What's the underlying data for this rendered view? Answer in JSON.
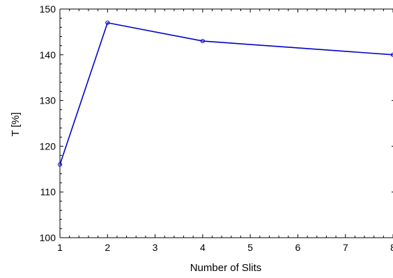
{
  "chart_data": {
    "type": "line",
    "title": "",
    "xlabel": "Number of Slits",
    "ylabel": "T [%]",
    "xlim": [
      1,
      8
    ],
    "ylim": [
      100,
      150
    ],
    "x_ticks": [
      "1",
      "2",
      "3",
      "4",
      "5",
      "6",
      "7",
      "8"
    ],
    "y_ticks": [
      "100",
      "110",
      "120",
      "130",
      "140",
      "150"
    ],
    "grid": false,
    "series": [
      {
        "color": "#0000cc",
        "points": [
          {
            "x": 1,
            "y": 116
          },
          {
            "x": 2,
            "y": 147
          },
          {
            "x": 4,
            "y": 143
          },
          {
            "x": 8,
            "y": 140
          }
        ]
      }
    ]
  }
}
